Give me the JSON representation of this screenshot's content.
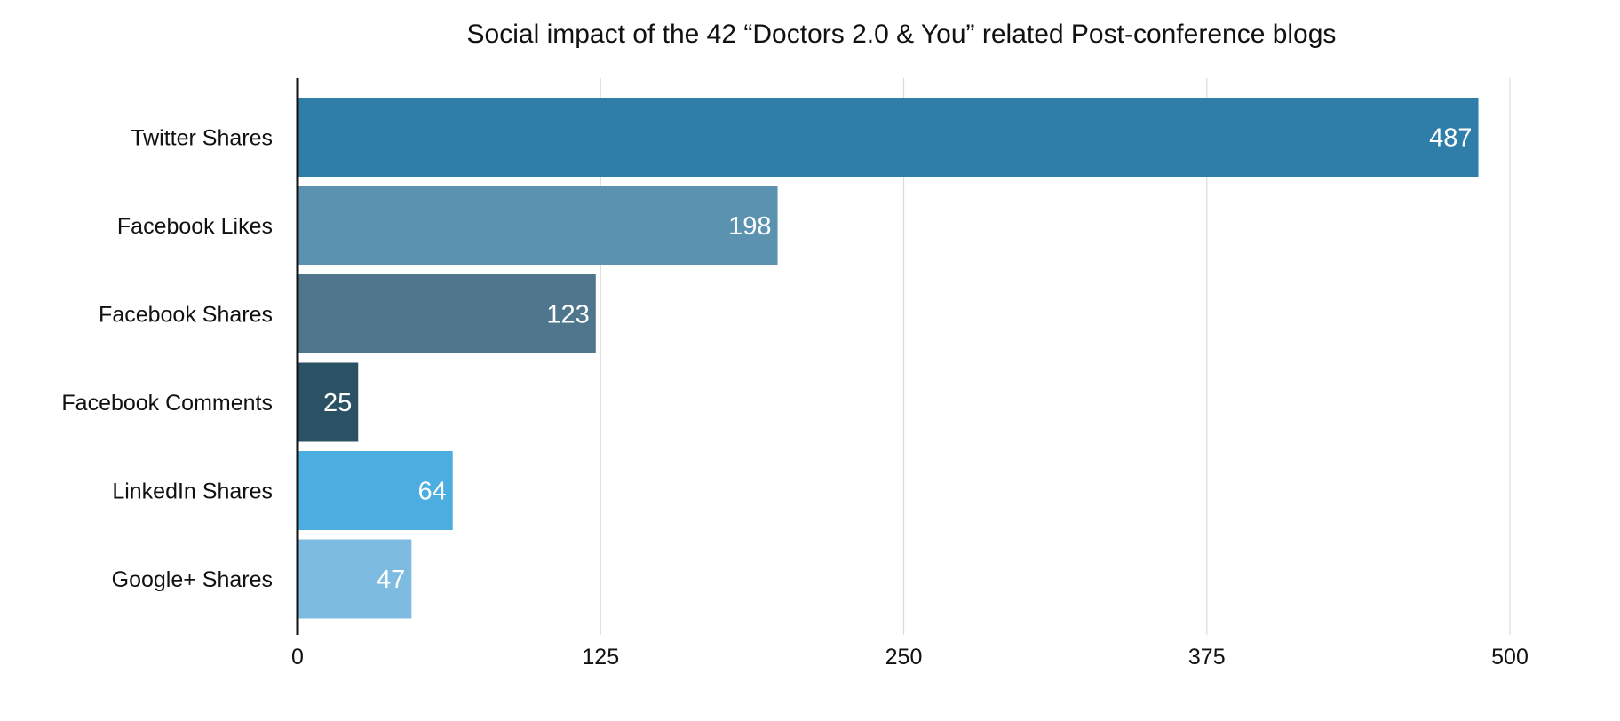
{
  "chart_data": {
    "type": "bar",
    "orientation": "horizontal",
    "title": "Social impact of the 42 “Doctors 2.0 & You” related Post-conference blogs",
    "categories": [
      "Twitter Shares",
      "Facebook Likes",
      "Facebook Shares",
      "Facebook Comments",
      "LinkedIn Shares",
      "Google+ Shares"
    ],
    "values": [
      487,
      198,
      123,
      25,
      64,
      47
    ],
    "bar_colors": [
      "#2e7ea9",
      "#5a92b0",
      "#50768e",
      "#2a5164",
      "#4cade0",
      "#7dbbe1"
    ],
    "xlim": [
      0,
      500
    ],
    "xticks": [
      0,
      125,
      250,
      375,
      500
    ],
    "grid": true,
    "data_labels": true,
    "xlabel": "",
    "ylabel": ""
  }
}
